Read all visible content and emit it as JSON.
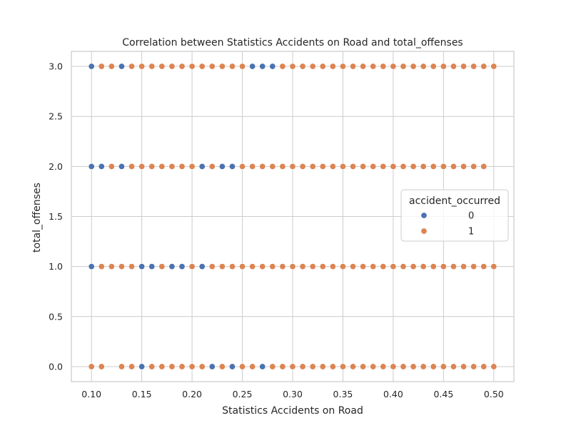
{
  "chart_data": {
    "type": "scatter",
    "title": "Correlation between Statistics Accidents on Road and total_offenses",
    "xlabel": "Statistics Accidents on Road",
    "ylabel": "total_offenses",
    "xlim": [
      0.08,
      0.52
    ],
    "ylim": [
      -0.15,
      3.15
    ],
    "x_ticks": [
      0.1,
      0.15,
      0.2,
      0.25,
      0.3,
      0.35,
      0.4,
      0.45,
      0.5
    ],
    "x_tick_labels": [
      "0.10",
      "0.15",
      "0.20",
      "0.25",
      "0.30",
      "0.35",
      "0.40",
      "0.45",
      "0.50"
    ],
    "y_ticks": [
      0.0,
      0.5,
      1.0,
      1.5,
      2.0,
      2.5,
      3.0
    ],
    "y_tick_labels": [
      "0.0",
      "0.5",
      "1.0",
      "1.5",
      "2.0",
      "2.5",
      "3.0"
    ],
    "grid": true,
    "legend": {
      "title": "accident_occurred",
      "placement": "center-right",
      "entries": [
        {
          "label": "0",
          "color": "#4c72b0"
        },
        {
          "label": "1",
          "color": "#dd8452"
        }
      ]
    },
    "series": [
      {
        "name": "0",
        "color": "#4c72b0",
        "points": [
          [
            0.1,
            3
          ],
          [
            0.13,
            3
          ],
          [
            0.26,
            3
          ],
          [
            0.27,
            3
          ],
          [
            0.28,
            3
          ],
          [
            0.1,
            2
          ],
          [
            0.11,
            2
          ],
          [
            0.13,
            2
          ],
          [
            0.21,
            2
          ],
          [
            0.23,
            2
          ],
          [
            0.24,
            2
          ],
          [
            0.1,
            1
          ],
          [
            0.15,
            1
          ],
          [
            0.16,
            1
          ],
          [
            0.18,
            1
          ],
          [
            0.19,
            1
          ],
          [
            0.21,
            1
          ],
          [
            0.15,
            0
          ],
          [
            0.22,
            0
          ],
          [
            0.24,
            0
          ],
          [
            0.27,
            0
          ]
        ]
      },
      {
        "name": "1",
        "color": "#dd8452",
        "points": [
          [
            0.11,
            3
          ],
          [
            0.12,
            3
          ],
          [
            0.14,
            3
          ],
          [
            0.15,
            3
          ],
          [
            0.16,
            3
          ],
          [
            0.17,
            3
          ],
          [
            0.18,
            3
          ],
          [
            0.19,
            3
          ],
          [
            0.2,
            3
          ],
          [
            0.21,
            3
          ],
          [
            0.22,
            3
          ],
          [
            0.23,
            3
          ],
          [
            0.24,
            3
          ],
          [
            0.25,
            3
          ],
          [
            0.29,
            3
          ],
          [
            0.3,
            3
          ],
          [
            0.31,
            3
          ],
          [
            0.32,
            3
          ],
          [
            0.33,
            3
          ],
          [
            0.34,
            3
          ],
          [
            0.35,
            3
          ],
          [
            0.36,
            3
          ],
          [
            0.37,
            3
          ],
          [
            0.38,
            3
          ],
          [
            0.39,
            3
          ],
          [
            0.4,
            3
          ],
          [
            0.41,
            3
          ],
          [
            0.42,
            3
          ],
          [
            0.43,
            3
          ],
          [
            0.44,
            3
          ],
          [
            0.45,
            3
          ],
          [
            0.46,
            3
          ],
          [
            0.47,
            3
          ],
          [
            0.48,
            3
          ],
          [
            0.49,
            3
          ],
          [
            0.5,
            3
          ],
          [
            0.12,
            2
          ],
          [
            0.14,
            2
          ],
          [
            0.15,
            2
          ],
          [
            0.16,
            2
          ],
          [
            0.17,
            2
          ],
          [
            0.18,
            2
          ],
          [
            0.19,
            2
          ],
          [
            0.2,
            2
          ],
          [
            0.22,
            2
          ],
          [
            0.25,
            2
          ],
          [
            0.26,
            2
          ],
          [
            0.27,
            2
          ],
          [
            0.28,
            2
          ],
          [
            0.29,
            2
          ],
          [
            0.3,
            2
          ],
          [
            0.31,
            2
          ],
          [
            0.32,
            2
          ],
          [
            0.33,
            2
          ],
          [
            0.34,
            2
          ],
          [
            0.35,
            2
          ],
          [
            0.36,
            2
          ],
          [
            0.37,
            2
          ],
          [
            0.38,
            2
          ],
          [
            0.39,
            2
          ],
          [
            0.4,
            2
          ],
          [
            0.41,
            2
          ],
          [
            0.42,
            2
          ],
          [
            0.43,
            2
          ],
          [
            0.44,
            2
          ],
          [
            0.45,
            2
          ],
          [
            0.46,
            2
          ],
          [
            0.47,
            2
          ],
          [
            0.48,
            2
          ],
          [
            0.49,
            2
          ],
          [
            0.11,
            1
          ],
          [
            0.12,
            1
          ],
          [
            0.13,
            1
          ],
          [
            0.14,
            1
          ],
          [
            0.17,
            1
          ],
          [
            0.2,
            1
          ],
          [
            0.22,
            1
          ],
          [
            0.23,
            1
          ],
          [
            0.24,
            1
          ],
          [
            0.25,
            1
          ],
          [
            0.26,
            1
          ],
          [
            0.27,
            1
          ],
          [
            0.28,
            1
          ],
          [
            0.29,
            1
          ],
          [
            0.3,
            1
          ],
          [
            0.31,
            1
          ],
          [
            0.32,
            1
          ],
          [
            0.33,
            1
          ],
          [
            0.34,
            1
          ],
          [
            0.35,
            1
          ],
          [
            0.36,
            1
          ],
          [
            0.37,
            1
          ],
          [
            0.38,
            1
          ],
          [
            0.39,
            1
          ],
          [
            0.4,
            1
          ],
          [
            0.41,
            1
          ],
          [
            0.42,
            1
          ],
          [
            0.43,
            1
          ],
          [
            0.44,
            1
          ],
          [
            0.45,
            1
          ],
          [
            0.46,
            1
          ],
          [
            0.47,
            1
          ],
          [
            0.48,
            1
          ],
          [
            0.49,
            1
          ],
          [
            0.5,
            1
          ],
          [
            0.1,
            0
          ],
          [
            0.11,
            0
          ],
          [
            0.13,
            0
          ],
          [
            0.14,
            0
          ],
          [
            0.16,
            0
          ],
          [
            0.17,
            0
          ],
          [
            0.18,
            0
          ],
          [
            0.19,
            0
          ],
          [
            0.2,
            0
          ],
          [
            0.21,
            0
          ],
          [
            0.23,
            0
          ],
          [
            0.25,
            0
          ],
          [
            0.26,
            0
          ],
          [
            0.28,
            0
          ],
          [
            0.29,
            0
          ],
          [
            0.3,
            0
          ],
          [
            0.31,
            0
          ],
          [
            0.32,
            0
          ],
          [
            0.33,
            0
          ],
          [
            0.34,
            0
          ],
          [
            0.35,
            0
          ],
          [
            0.36,
            0
          ],
          [
            0.37,
            0
          ],
          [
            0.38,
            0
          ],
          [
            0.39,
            0
          ],
          [
            0.4,
            0
          ],
          [
            0.41,
            0
          ],
          [
            0.42,
            0
          ],
          [
            0.43,
            0
          ],
          [
            0.44,
            0
          ],
          [
            0.45,
            0
          ],
          [
            0.46,
            0
          ],
          [
            0.47,
            0
          ],
          [
            0.48,
            0
          ],
          [
            0.49,
            0
          ],
          [
            0.5,
            0
          ]
        ]
      }
    ]
  }
}
